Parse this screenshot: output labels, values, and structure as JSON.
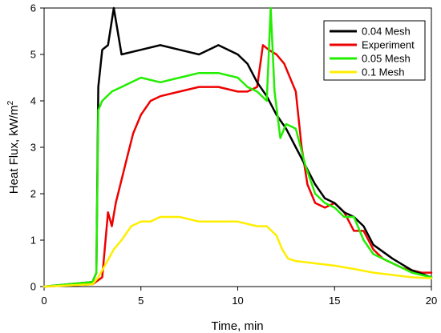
{
  "chart_data": {
    "type": "line",
    "xlabel": "Time, min",
    "ylabel_main": "Heat Flux, kW/m",
    "ylabel_sup": "2",
    "xlim": [
      0,
      20
    ],
    "ylim": [
      0,
      6
    ],
    "xticks": [
      "0",
      "5",
      "10",
      "15",
      "20"
    ],
    "yticks": [
      "0",
      "1",
      "2",
      "3",
      "4",
      "5",
      "6"
    ],
    "legend_position": "top-right",
    "series": [
      {
        "name": "0.04 Mesh",
        "color": "#000000",
        "x": [
          0,
          2.5,
          2.7,
          2.8,
          3.0,
          3.3,
          3.6,
          4.0,
          5.0,
          6.0,
          7.0,
          8.0,
          9.0,
          10.0,
          10.5,
          11.0,
          11.5,
          12.0,
          12.5,
          13.0,
          13.5,
          14.0,
          14.5,
          15.0,
          15.5,
          16.0,
          16.5,
          17.0,
          18.0,
          19.0,
          20.0
        ],
        "y": [
          0,
          0.1,
          0.3,
          4.3,
          5.1,
          5.2,
          6.0,
          5.0,
          5.1,
          5.2,
          5.1,
          5.0,
          5.2,
          5.0,
          4.8,
          4.4,
          4.1,
          3.7,
          3.4,
          3.0,
          2.6,
          2.2,
          1.9,
          1.8,
          1.6,
          1.5,
          1.3,
          0.9,
          0.6,
          0.35,
          0.2
        ]
      },
      {
        "name": "Experiment",
        "color": "#ee0000",
        "x": [
          0,
          2.5,
          3.0,
          3.3,
          3.5,
          3.7,
          4.0,
          4.3,
          4.6,
          5.0,
          5.5,
          6.0,
          7.0,
          8.0,
          9.0,
          10.0,
          10.5,
          11.0,
          11.3,
          11.6,
          12.0,
          12.4,
          12.8,
          13.0,
          13.3,
          13.6,
          14.0,
          14.5,
          15.0,
          15.5,
          16.0,
          16.5,
          17.0,
          17.5,
          18.0,
          18.5,
          19.0,
          19.5,
          20.0
        ],
        "y": [
          0,
          0.05,
          0.2,
          1.6,
          1.3,
          1.8,
          2.3,
          2.8,
          3.3,
          3.7,
          4.0,
          4.1,
          4.2,
          4.3,
          4.3,
          4.2,
          4.2,
          4.3,
          5.2,
          5.1,
          5.0,
          4.8,
          4.4,
          4.2,
          3.0,
          2.2,
          1.8,
          1.7,
          1.8,
          1.6,
          1.2,
          1.2,
          0.8,
          0.6,
          0.5,
          0.4,
          0.35,
          0.3,
          0.3
        ]
      },
      {
        "name": "0.05 Mesh",
        "color": "#22ee00",
        "x": [
          0,
          2.5,
          2.7,
          2.8,
          3.0,
          3.5,
          4.0,
          5.0,
          6.0,
          7.0,
          8.0,
          9.0,
          10.0,
          10.5,
          11.0,
          11.5,
          11.7,
          11.9,
          12.2,
          12.5,
          13.0,
          13.5,
          14.0,
          14.5,
          15.0,
          15.5,
          16.0,
          16.5,
          17.0,
          18.0,
          19.0,
          20.0
        ],
        "y": [
          0,
          0.1,
          0.3,
          3.8,
          4.0,
          4.2,
          4.3,
          4.5,
          4.4,
          4.5,
          4.6,
          4.6,
          4.5,
          4.3,
          4.2,
          4.0,
          6.0,
          4.2,
          3.2,
          3.5,
          3.4,
          2.6,
          2.0,
          1.8,
          1.7,
          1.5,
          1.5,
          1.0,
          0.7,
          0.5,
          0.3,
          0.2
        ]
      },
      {
        "name": "0.1 Mesh",
        "color": "#ffee00",
        "x": [
          0,
          2.5,
          2.8,
          3.2,
          3.6,
          4.0,
          4.5,
          5.0,
          5.5,
          6.0,
          7.0,
          8.0,
          9.0,
          10.0,
          11.0,
          11.5,
          12.0,
          12.3,
          12.6,
          13.0,
          14.0,
          15.0,
          16.0,
          17.0,
          18.0,
          19.0,
          20.0
        ],
        "y": [
          0,
          0.05,
          0.2,
          0.5,
          0.8,
          1.0,
          1.3,
          1.4,
          1.4,
          1.5,
          1.5,
          1.4,
          1.4,
          1.4,
          1.3,
          1.3,
          1.1,
          0.8,
          0.6,
          0.55,
          0.5,
          0.45,
          0.38,
          0.3,
          0.25,
          0.2,
          0.18
        ]
      }
    ]
  }
}
